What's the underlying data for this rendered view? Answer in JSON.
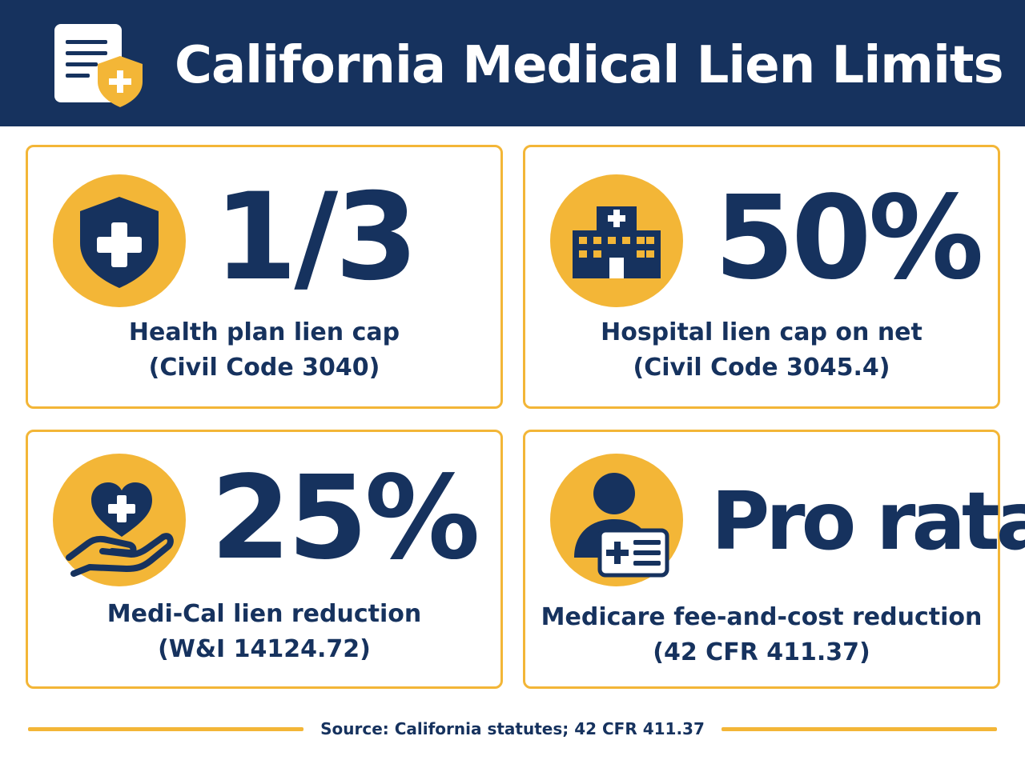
{
  "header": {
    "title": "California Medical Lien Limits",
    "icon": "document-shield-icon"
  },
  "colors": {
    "navy": "#16325e",
    "gold": "#f3b637",
    "white": "#ffffff"
  },
  "cards": [
    {
      "icon": "shield-plus-icon",
      "value": "1/3",
      "line1": "Health plan lien cap",
      "line2": "(Civil Code 3040)"
    },
    {
      "icon": "hospital-icon",
      "value": "50%",
      "line1": "Hospital lien cap on net",
      "line2": "(Civil Code 3045.4)"
    },
    {
      "icon": "hand-heart-icon",
      "value": "25%",
      "line1": "Medi-Cal lien reduction",
      "line2": "(W&I 14124.72)"
    },
    {
      "icon": "person-id-card-icon",
      "value": "Pro rata",
      "line1": "Medicare fee-and-cost reduction",
      "line2": "(42 CFR 411.37)"
    }
  ],
  "footer": {
    "source": "Source: California statutes; 42 CFR 411.37"
  }
}
